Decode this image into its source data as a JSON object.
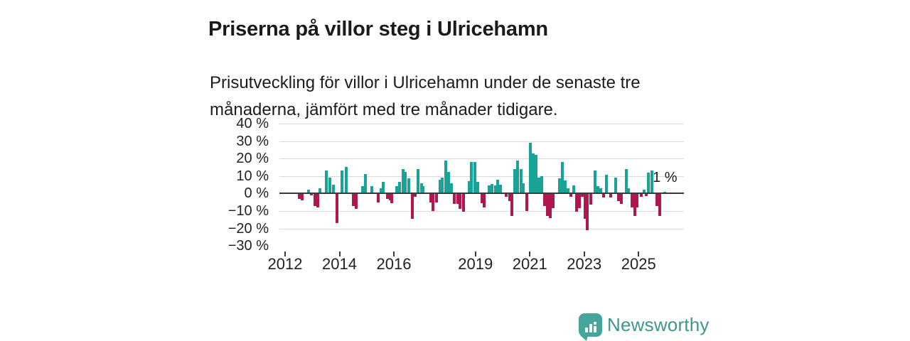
{
  "header": {
    "title": "Priserna på villor steg i Ulricehamn",
    "subtitle": "Prisutveckling för villor i Ulricehamn under de senaste tre månaderna, jämfört med tre månader tidigare."
  },
  "branding": {
    "name": "Newsworthy",
    "color": "#3e968f",
    "icon": "speech-bubble-bar-chart"
  },
  "chart_data": {
    "type": "bar",
    "title": "Priserna på villor steg i Ulricehamn",
    "xlabel": "",
    "ylabel": "%",
    "x_range": [
      2011.79,
      2026.67
    ],
    "ylim": [
      -30,
      40
    ],
    "grid": "horizontal",
    "colors": {
      "positive": "#17a398",
      "negative": "#b0174f",
      "gridline": "#d9d9d9",
      "zero_line": "#3a3a3a",
      "axis_text": "#222222"
    },
    "y_ticks": [
      {
        "v": 40,
        "label": "40 %"
      },
      {
        "v": 30,
        "label": "30 %"
      },
      {
        "v": 20,
        "label": "20 %"
      },
      {
        "v": 10,
        "label": "10 %"
      },
      {
        "v": 0,
        "label": "0 %"
      },
      {
        "v": -10,
        "label": "−10 %"
      },
      {
        "v": -20,
        "label": "−20 %"
      },
      {
        "v": -30,
        "label": "−30 %"
      }
    ],
    "x_ticks": [
      {
        "t": 2012,
        "label": "2012"
      },
      {
        "t": 2014,
        "label": "2014"
      },
      {
        "t": 2016,
        "label": "2016"
      },
      {
        "t": 2019,
        "label": "2019"
      },
      {
        "t": 2021,
        "label": "2021"
      },
      {
        "t": 2023,
        "label": "2023"
      },
      {
        "t": 2025,
        "label": "2025"
      }
    ],
    "annotation": {
      "text": "1 %",
      "t": 2025.52,
      "v": 13
    },
    "points": [
      [
        2012.52,
        -3
      ],
      [
        2012.64,
        -4
      ],
      [
        2012.86,
        2
      ],
      [
        2012.97,
        -1
      ],
      [
        2013.11,
        -7
      ],
      [
        2013.19,
        -8
      ],
      [
        2013.27,
        3
      ],
      [
        2013.52,
        13
      ],
      [
        2013.65,
        9
      ],
      [
        2013.78,
        5
      ],
      [
        2013.91,
        -17
      ],
      [
        2014.1,
        13
      ],
      [
        2014.24,
        15
      ],
      [
        2014.51,
        -7
      ],
      [
        2014.61,
        -9
      ],
      [
        2014.84,
        4
      ],
      [
        2014.95,
        11
      ],
      [
        2015.19,
        4
      ],
      [
        2015.42,
        -5
      ],
      [
        2015.53,
        3
      ],
      [
        2015.62,
        6.5
      ],
      [
        2015.76,
        -3
      ],
      [
        2015.86,
        -4
      ],
      [
        2015.93,
        -5.5
      ],
      [
        2016.1,
        4
      ],
      [
        2016.21,
        6.5
      ],
      [
        2016.33,
        14
      ],
      [
        2016.43,
        12.5
      ],
      [
        2016.55,
        8.5
      ],
      [
        2016.68,
        -14.5
      ],
      [
        2016.78,
        -2
      ],
      [
        2016.9,
        14
      ],
      [
        2017.01,
        6
      ],
      [
        2017.08,
        4
      ],
      [
        2017.35,
        -5
      ],
      [
        2017.45,
        -10
      ],
      [
        2017.56,
        -5
      ],
      [
        2017.69,
        8
      ],
      [
        2017.79,
        9
      ],
      [
        2017.9,
        19
      ],
      [
        2018.01,
        12.5
      ],
      [
        2018.12,
        6
      ],
      [
        2018.23,
        -6
      ],
      [
        2018.34,
        -6
      ],
      [
        2018.44,
        -9
      ],
      [
        2018.55,
        -10.5
      ],
      [
        2018.76,
        7
      ],
      [
        2018.86,
        18
      ],
      [
        2018.97,
        18
      ],
      [
        2019.08,
        6.5
      ],
      [
        2019.23,
        -5.5
      ],
      [
        2019.32,
        -8
      ],
      [
        2019.5,
        4.5
      ],
      [
        2019.62,
        5.5
      ],
      [
        2019.73,
        4.5
      ],
      [
        2019.83,
        8
      ],
      [
        2019.93,
        5
      ],
      [
        2020.14,
        -2
      ],
      [
        2020.25,
        -4.5
      ],
      [
        2020.35,
        -13
      ],
      [
        2020.44,
        14
      ],
      [
        2020.55,
        19
      ],
      [
        2020.67,
        14
      ],
      [
        2020.77,
        6
      ],
      [
        2020.89,
        -10
      ],
      [
        2021.02,
        29
      ],
      [
        2021.12,
        23
      ],
      [
        2021.23,
        22
      ],
      [
        2021.33,
        9
      ],
      [
        2021.44,
        10
      ],
      [
        2021.54,
        -7
      ],
      [
        2021.65,
        -13
      ],
      [
        2021.75,
        -14
      ],
      [
        2021.86,
        -8.5
      ],
      [
        2022.09,
        8.5
      ],
      [
        2022.2,
        18
      ],
      [
        2022.3,
        7.5
      ],
      [
        2022.41,
        3
      ],
      [
        2022.51,
        -2
      ],
      [
        2022.61,
        4.5
      ],
      [
        2022.72,
        -10.5
      ],
      [
        2022.82,
        -8.5
      ],
      [
        2022.93,
        -2
      ],
      [
        2023.03,
        -14.5
      ],
      [
        2023.12,
        -21
      ],
      [
        2023.23,
        -6.5
      ],
      [
        2023.4,
        13
      ],
      [
        2023.5,
        4
      ],
      [
        2023.61,
        3
      ],
      [
        2023.71,
        -2.5
      ],
      [
        2023.82,
        10.5
      ],
      [
        2023.97,
        -2.5
      ],
      [
        2024.16,
        9
      ],
      [
        2024.26,
        -4.5
      ],
      [
        2024.37,
        -6
      ],
      [
        2024.55,
        14
      ],
      [
        2024.64,
        3
      ],
      [
        2024.75,
        -8
      ],
      [
        2024.85,
        -13
      ],
      [
        2024.95,
        -8
      ],
      [
        2025.1,
        -2
      ],
      [
        2025.19,
        2
      ],
      [
        2025.28,
        -1.5
      ],
      [
        2025.37,
        12
      ],
      [
        2025.48,
        13
      ],
      [
        2025.68,
        -7
      ],
      [
        2025.78,
        -13
      ],
      [
        2025.95,
        1
      ]
    ]
  }
}
